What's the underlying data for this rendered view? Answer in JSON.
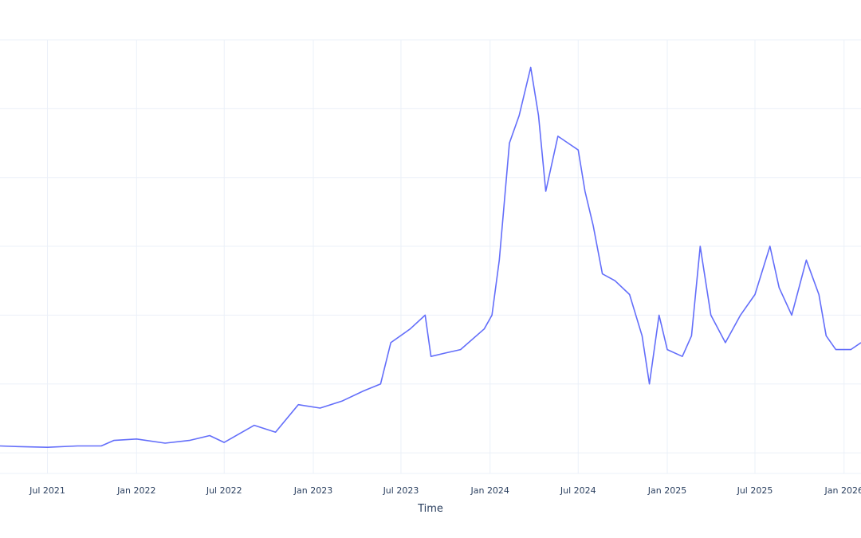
{
  "chart_data": {
    "type": "line",
    "title": "",
    "xlabel": "Time",
    "ylabel": "",
    "grid": true,
    "legend": "none",
    "line_color": "#636efa",
    "x_tick_labels": [
      "Jul 2021",
      "Jan 2022",
      "Jul 2022",
      "Jan 2023",
      "Jul 2023",
      "Jan 2024",
      "Jul 2024",
      "Jan 2025",
      "Jul 2025",
      "Jan 2026"
    ],
    "x_ticks": [
      "2021-07-01",
      "2022-01-01",
      "2022-07-01",
      "2023-01-01",
      "2023-07-01",
      "2024-01-01",
      "2024-07-01",
      "2025-01-01",
      "2025-07-01",
      "2026-01-01"
    ],
    "xlim": [
      "2021-03-25",
      "2026-02-05"
    ],
    "ylim": [
      -0.3,
      6.0
    ],
    "series": [
      {
        "values": [
          [
            "2021-03-25",
            0.1
          ],
          [
            "2021-05-01",
            0.09
          ],
          [
            "2021-07-01",
            0.08
          ],
          [
            "2021-09-01",
            0.1
          ],
          [
            "2021-10-20",
            0.1
          ],
          [
            "2021-11-15",
            0.18
          ],
          [
            "2022-01-01",
            0.2
          ],
          [
            "2022-03-01",
            0.14
          ],
          [
            "2022-04-20",
            0.18
          ],
          [
            "2022-06-01",
            0.25
          ],
          [
            "2022-07-01",
            0.15
          ],
          [
            "2022-09-01",
            0.4
          ],
          [
            "2022-10-15",
            0.3
          ],
          [
            "2022-12-01",
            0.7
          ],
          [
            "2023-01-15",
            0.65
          ],
          [
            "2023-03-01",
            0.75
          ],
          [
            "2023-04-15",
            0.9
          ],
          [
            "2023-05-20",
            1.0
          ],
          [
            "2023-06-10",
            1.6
          ],
          [
            "2023-07-20",
            1.8
          ],
          [
            "2023-08-20",
            2.0
          ],
          [
            "2023-09-01",
            1.4
          ],
          [
            "2023-10-01",
            1.45
          ],
          [
            "2023-11-01",
            1.5
          ],
          [
            "2023-12-20",
            1.8
          ],
          [
            "2024-01-05",
            2.0
          ],
          [
            "2024-01-20",
            2.8
          ],
          [
            "2024-02-10",
            4.5
          ],
          [
            "2024-03-01",
            4.9
          ],
          [
            "2024-03-25",
            5.6
          ],
          [
            "2024-04-10",
            4.9
          ],
          [
            "2024-04-25",
            3.8
          ],
          [
            "2024-05-20",
            4.6
          ],
          [
            "2024-06-10",
            4.5
          ],
          [
            "2024-07-01",
            4.4
          ],
          [
            "2024-07-15",
            3.8
          ],
          [
            "2024-08-01",
            3.3
          ],
          [
            "2024-08-20",
            2.6
          ],
          [
            "2024-09-15",
            2.5
          ],
          [
            "2024-10-15",
            2.3
          ],
          [
            "2024-11-10",
            1.7
          ],
          [
            "2024-11-25",
            1.0
          ],
          [
            "2024-12-15",
            2.0
          ],
          [
            "2025-01-01",
            1.5
          ],
          [
            "2025-02-01",
            1.4
          ],
          [
            "2025-02-20",
            1.7
          ],
          [
            "2025-03-10",
            3.0
          ],
          [
            "2025-04-01",
            2.0
          ],
          [
            "2025-05-01",
            1.6
          ],
          [
            "2025-06-01",
            2.0
          ],
          [
            "2025-07-01",
            2.3
          ],
          [
            "2025-08-01",
            3.0
          ],
          [
            "2025-08-20",
            2.4
          ],
          [
            "2025-09-15",
            2.0
          ],
          [
            "2025-10-15",
            2.8
          ],
          [
            "2025-11-10",
            2.3
          ],
          [
            "2025-11-25",
            1.7
          ],
          [
            "2025-12-15",
            1.5
          ],
          [
            "2026-01-15",
            1.5
          ],
          [
            "2026-02-05",
            1.6
          ]
        ]
      }
    ]
  }
}
